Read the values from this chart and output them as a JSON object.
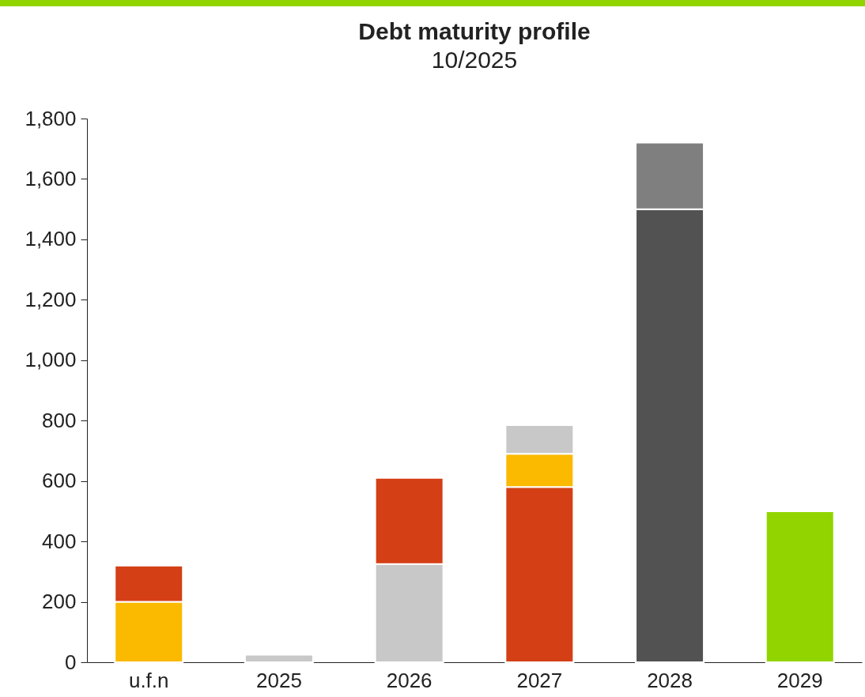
{
  "chart_data": {
    "type": "bar",
    "title": "Debt maturity profile",
    "subtitle": "10/2025",
    "stacked": true,
    "categories": [
      "u.f.n",
      "2025",
      "2026",
      "2027",
      "2028",
      "2029"
    ],
    "series": [
      {
        "color": "#c8c8c8",
        "values": [
          null,
          25,
          325,
          null,
          null,
          null
        ]
      },
      {
        "color": "#d43f16",
        "values": [
          null,
          null,
          285,
          580,
          null,
          null
        ]
      },
      {
        "color": "#fbb900",
        "values": [
          200,
          null,
          null,
          110,
          null,
          null
        ]
      },
      {
        "color": "#d43f16",
        "values": [
          120,
          null,
          null,
          null,
          null,
          null
        ]
      },
      {
        "color": "#c8c8c8",
        "values": [
          null,
          null,
          null,
          95,
          null,
          null
        ]
      },
      {
        "color": "#525252",
        "values": [
          null,
          null,
          null,
          null,
          1500,
          null
        ]
      },
      {
        "color": "#7f7f7f",
        "values": [
          null,
          null,
          null,
          null,
          220,
          null
        ]
      },
      {
        "color": "#92d400",
        "values": [
          null,
          null,
          null,
          null,
          null,
          500
        ]
      }
    ],
    "ylim": [
      0,
      1800
    ],
    "yticks": [
      0,
      200,
      400,
      600,
      800,
      {
        "value": 1000,
        "label": "1,000"
      },
      {
        "value": 1200,
        "label": "1,200"
      },
      {
        "value": 1400,
        "label": "1,400"
      },
      {
        "value": 1600,
        "label": "1,600"
      },
      {
        "value": 1800,
        "label": "1,800"
      }
    ],
    "grid": false,
    "legend": false
  }
}
